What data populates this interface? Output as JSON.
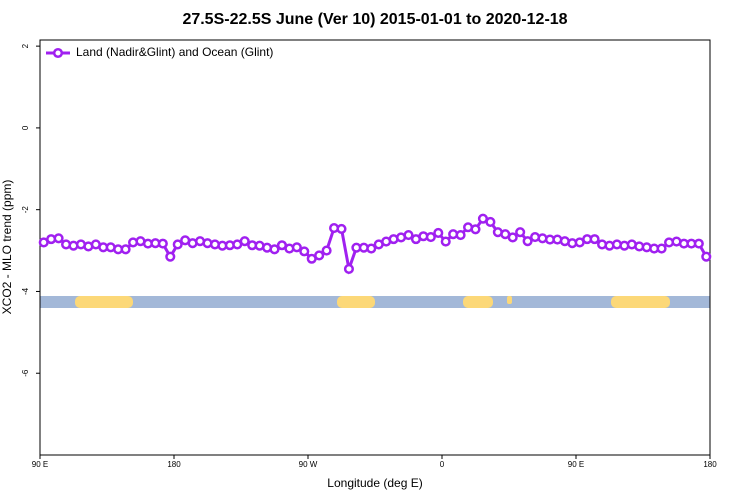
{
  "chart_data": {
    "type": "line",
    "title": "27.5S-22.5S June (Ver 10)   2015-01-01 to 2020-12-18",
    "x_label": "Longitude (deg E)",
    "y_label": "XCO2 - MLO trend (ppm)",
    "xlim": [
      90,
      540
    ],
    "xticks": [
      {
        "value": 90,
        "label": "90 E"
      },
      {
        "value": 180,
        "label": "180"
      },
      {
        "value": 270,
        "label": "90 W"
      },
      {
        "value": 360,
        "label": "0"
      },
      {
        "value": 450,
        "label": "90 E"
      },
      {
        "value": 540,
        "label": "180"
      }
    ],
    "ylim": [
      -8,
      2.15
    ],
    "yticks": [
      -6,
      -4,
      -2,
      0,
      2
    ],
    "legend": "top-left",
    "x": [
      92.5,
      97.5,
      102.5,
      107.5,
      112.5,
      117.5,
      122.5,
      127.5,
      132.5,
      137.5,
      142.5,
      147.5,
      152.5,
      157.5,
      162.5,
      167.5,
      172.5,
      177.5,
      182.5,
      187.5,
      192.5,
      197.5,
      202.5,
      207.5,
      212.5,
      217.5,
      222.5,
      227.5,
      232.5,
      237.5,
      242.5,
      247.5,
      252.5,
      257.5,
      262.5,
      267.5,
      272.5,
      277.5,
      282.5,
      287.5,
      292.5,
      297.5,
      302.5,
      307.5,
      312.5,
      317.5,
      322.5,
      327.5,
      332.5,
      337.5,
      342.5,
      347.5,
      352.5,
      357.5,
      362.5,
      367.5,
      372.5,
      377.5,
      382.5,
      387.5,
      392.5,
      397.5,
      402.5,
      407.5,
      412.5,
      417.5,
      422.5,
      427.5,
      432.5,
      437.5,
      442.5,
      447.5,
      452.5,
      457.5,
      462.5,
      467.5,
      472.5,
      477.5,
      482.5,
      487.5,
      492.5,
      497.5,
      502.5,
      507.5,
      512.5,
      517.5,
      522.5,
      527.5,
      532.5,
      537.5
    ],
    "series": [
      {
        "name": "Land (Nadir&Glint) and Ocean (Glint)",
        "color": "#a020f0",
        "values": [
          -2.8,
          -2.72,
          -2.7,
          -2.85,
          -2.88,
          -2.85,
          -2.9,
          -2.85,
          -2.92,
          -2.92,
          -2.97,
          -2.97,
          -2.8,
          -2.77,
          -2.83,
          -2.82,
          -2.83,
          -3.15,
          -2.85,
          -2.75,
          -2.82,
          -2.77,
          -2.82,
          -2.85,
          -2.88,
          -2.87,
          -2.85,
          -2.77,
          -2.87,
          -2.88,
          -2.93,
          -2.97,
          -2.87,
          -2.95,
          -2.92,
          -3.02,
          -3.2,
          -3.12,
          -3.0,
          -2.45,
          -2.47,
          -3.45,
          -2.93,
          -2.93,
          -2.95,
          -2.85,
          -2.78,
          -2.72,
          -2.68,
          -2.62,
          -2.72,
          -2.65,
          -2.67,
          -2.57,
          -2.78,
          -2.6,
          -2.62,
          -2.43,
          -2.48,
          -2.22,
          -2.3,
          -2.55,
          -2.6,
          -2.68,
          -2.55,
          -2.77,
          -2.67,
          -2.7,
          -2.73,
          -2.73,
          -2.77,
          -2.82,
          -2.8,
          -2.72,
          -2.72,
          -2.85,
          -2.88,
          -2.85,
          -2.88,
          -2.85,
          -2.9,
          -2.92,
          -2.95,
          -2.95,
          -2.8,
          -2.78,
          -2.83,
          -2.83,
          -2.83,
          -3.15
        ]
      }
    ]
  }
}
